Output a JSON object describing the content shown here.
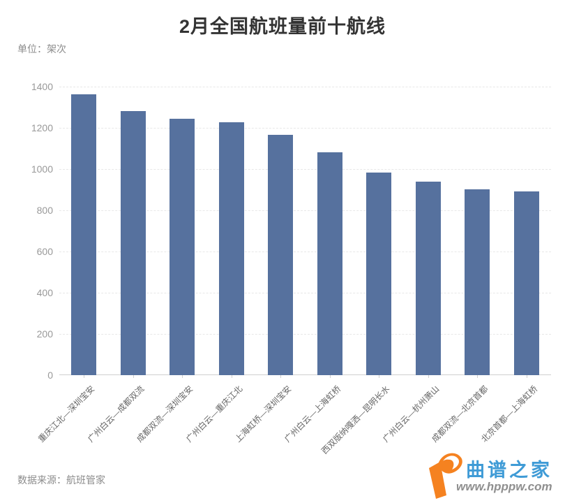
{
  "title": "2月全国航班量前十航线",
  "unit_label": "单位：架次",
  "source_label": "数据来源：航班管家",
  "watermark": {
    "brand_name": "曲谱之家",
    "brand_url": "www.hpppw.com"
  },
  "colors": {
    "bar": "#56719e",
    "title_text": "#333333",
    "axis_label": "#999999",
    "category_label": "#666666",
    "grid_line": "#e8e8e8",
    "axis_line": "#cfcfcf",
    "logo_orange": "#f58220",
    "logo_blue": "#3f9bd6",
    "url_gray": "#8f8f8f"
  },
  "chart_data": {
    "type": "bar",
    "title": "2月全国航班量前十航线",
    "unit": "架次",
    "categories": [
      "重庆江北—深圳宝安",
      "广州白云—成都双流",
      "成都双流—深圳宝安",
      "广州白云—重庆江北",
      "上海虹桥—深圳宝安",
      "广州白云—上海虹桥",
      "西双版纳嘎洒—昆明长水",
      "广州白云—杭州萧山",
      "成都双流—北京首都",
      "北京首都—上海虹桥"
    ],
    "values": [
      1362,
      1280,
      1243,
      1227,
      1167,
      1081,
      984,
      940,
      903,
      892
    ],
    "xlabel": "",
    "ylabel": "单位：架次",
    "ylim": [
      0,
      1400
    ],
    "yticks": [
      0,
      200,
      400,
      600,
      800,
      1000,
      1200,
      1400
    ],
    "grid": true,
    "legend": false,
    "source": "数据来源：航班管家"
  }
}
